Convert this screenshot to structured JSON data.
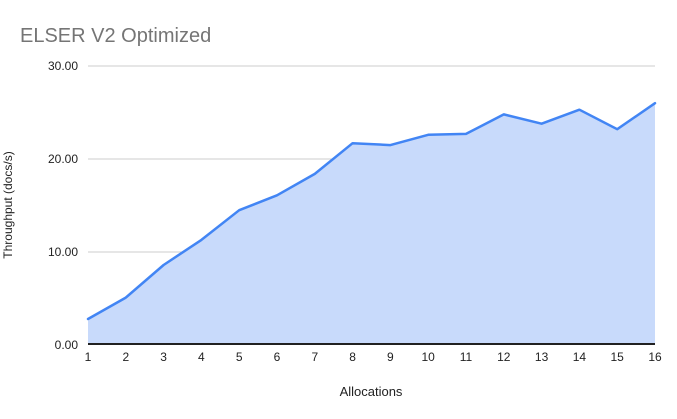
{
  "page": {
    "background": "#ffffff"
  },
  "chart_data": {
    "type": "area",
    "title": "ELSER V2 Optimized",
    "xlabel": "Allocations",
    "ylabel": "Throughput (docs/s)",
    "x": [
      1,
      2,
      3,
      4,
      5,
      6,
      7,
      8,
      9,
      10,
      11,
      12,
      13,
      14,
      15,
      16
    ],
    "x_tick_labels": [
      "1",
      "2",
      "3",
      "4",
      "5",
      "6",
      "7",
      "8",
      "9",
      "10",
      "11",
      "12",
      "13",
      "14",
      "15",
      "16"
    ],
    "values": [
      2.8,
      5.1,
      8.6,
      11.3,
      14.5,
      16.1,
      18.4,
      21.7,
      21.5,
      22.6,
      22.7,
      24.8,
      23.8,
      25.3,
      23.2,
      26.0
    ],
    "ylim": [
      0,
      30
    ],
    "yticks": [
      {
        "value": 0,
        "label": "0.00"
      },
      {
        "value": 10,
        "label": "10.00"
      },
      {
        "value": 20,
        "label": "20.00"
      },
      {
        "value": 30,
        "label": "30.00"
      }
    ],
    "grid": true,
    "legend": "none",
    "colors": {
      "line": "#4285f4",
      "fill": "#c8dafb",
      "gridline": "#cccccc",
      "axis_line": "#212121",
      "title": "#757575",
      "tick_label": "#222222"
    }
  }
}
